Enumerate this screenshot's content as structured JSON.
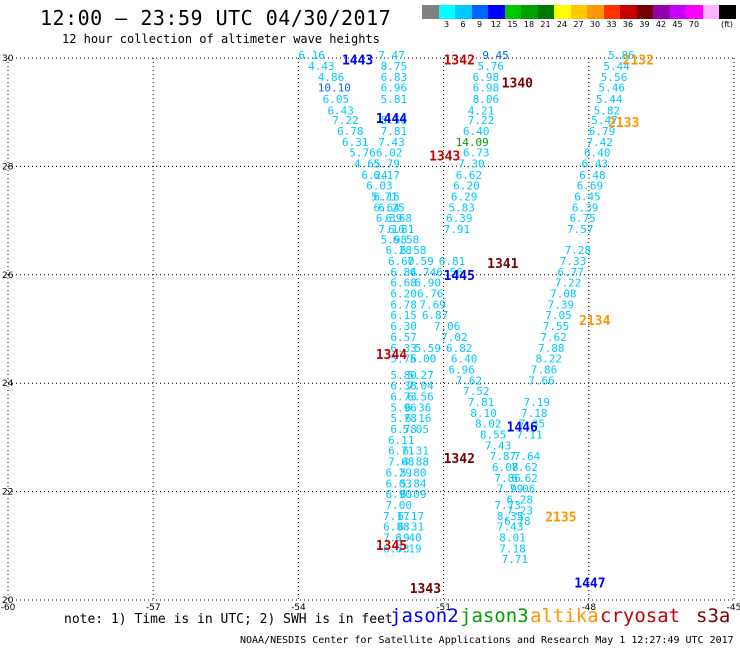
{
  "header": {
    "title": "12:00 — 23:59 UTC 04/30/2017",
    "subtitle": "12 hour collection of altimeter wave heights"
  },
  "colorbar": {
    "unit": "(ft)",
    "colors": [
      "#808080",
      "#00ffff",
      "#00c8ff",
      "#0064ff",
      "#0000ff",
      "#00c800",
      "#00a000",
      "#007800",
      "#ffff00",
      "#ffc800",
      "#ff9600",
      "#ff3200",
      "#c80000",
      "#780000",
      "#9600aa",
      "#c800ff",
      "#ff00ff",
      "#ffb4ff",
      "#000000"
    ],
    "labels": [
      "3",
      "6",
      "9",
      "12",
      "15",
      "18",
      "21",
      "24",
      "27",
      "30",
      "33",
      "36",
      "39",
      "42",
      "45",
      "70"
    ]
  },
  "axes": {
    "x_ticks": [
      "-60",
      "-57",
      "-54",
      "-51",
      "-48",
      "-45"
    ],
    "y_ticks": [
      "30",
      "28",
      "26",
      "24",
      "22",
      "20"
    ],
    "lon_range": [
      -60,
      -45
    ],
    "lat_range": [
      20,
      30
    ]
  },
  "colors": {
    "jason2": "#0000ff",
    "jason3": "#00a000",
    "altika": "#ff9600",
    "cryosat": "#c80000",
    "s3a": "#780000",
    "obs_light": "#00c8ff",
    "obs_dark": "#0064ff"
  },
  "passes": [
    {
      "label": "1443",
      "sat": "jason2",
      "lon": -53.1,
      "lat": 29.95
    },
    {
      "label": "1342",
      "sat": "cryosat",
      "lon": -51.0,
      "lat": 29.95
    },
    {
      "label": "2132",
      "sat": "altika",
      "lon": -47.3,
      "lat": 29.95
    },
    {
      "label": "1340",
      "sat": "s3a",
      "lon": -49.8,
      "lat": 29.53
    },
    {
      "label": "1444",
      "sat": "jason2",
      "lon": -52.4,
      "lat": 28.87
    },
    {
      "label": "2133",
      "sat": "altika",
      "lon": -47.6,
      "lat": 28.8
    },
    {
      "label": "1343",
      "sat": "cryosat",
      "lon": -51.3,
      "lat": 28.18
    },
    {
      "label": "1341",
      "sat": "s3a",
      "lon": -50.1,
      "lat": 26.2
    },
    {
      "label": "1445",
      "sat": "jason2",
      "lon": -51.0,
      "lat": 25.98
    },
    {
      "label": "2134",
      "sat": "altika",
      "lon": -48.2,
      "lat": 25.15
    },
    {
      "label": "1344",
      "sat": "cryosat",
      "lon": -52.4,
      "lat": 24.52
    },
    {
      "label": "1446",
      "sat": "jason2",
      "lon": -49.7,
      "lat": 23.18
    },
    {
      "label": "1342",
      "sat": "s3a",
      "lon": -51.0,
      "lat": 22.6
    },
    {
      "label": "2135",
      "sat": "altika",
      "lon": -48.9,
      "lat": 21.52
    },
    {
      "label": "1345",
      "sat": "cryosat",
      "lon": -52.4,
      "lat": 21.0
    },
    {
      "label": "1447",
      "sat": "jason2",
      "lon": -48.3,
      "lat": 20.3
    },
    {
      "label": "1343",
      "sat": "s3a",
      "lon": -51.7,
      "lat": 20.2
    }
  ],
  "observations": [
    {
      "v": "6.16",
      "lon": -54.0,
      "lat": 29.98
    },
    {
      "v": "4.43",
      "lon": -53.8,
      "lat": 29.78
    },
    {
      "v": "4.86",
      "lon": -53.6,
      "lat": 29.58
    },
    {
      "v": "10.10",
      "lon": -53.6,
      "lat": 29.38,
      "c": "dark"
    },
    {
      "v": "6.05",
      "lon": -53.5,
      "lat": 29.17
    },
    {
      "v": "6.43",
      "lon": -53.4,
      "lat": 28.96
    },
    {
      "v": "7.22",
      "lon": -53.3,
      "lat": 28.78
    },
    {
      "v": "6.78",
      "lon": -53.2,
      "lat": 28.58
    },
    {
      "v": "6.31",
      "lon": -53.1,
      "lat": 28.38
    },
    {
      "v": "5.76",
      "lon": -52.95,
      "lat": 28.18
    },
    {
      "v": "4.65",
      "lon": -52.85,
      "lat": 27.98
    },
    {
      "v": "6.24",
      "lon": -52.7,
      "lat": 27.77
    },
    {
      "v": "6.03",
      "lon": -52.6,
      "lat": 27.57
    },
    {
      "v": "5.71",
      "lon": -52.5,
      "lat": 27.37
    },
    {
      "v": "6.64",
      "lon": -52.45,
      "lat": 27.17
    },
    {
      "v": "6.39",
      "lon": -52.4,
      "lat": 26.97
    },
    {
      "v": "7.16",
      "lon": -52.35,
      "lat": 26.77
    },
    {
      "v": "5.98",
      "lon": -52.3,
      "lat": 26.58
    },
    {
      "v": "6.28",
      "lon": -52.2,
      "lat": 26.38
    },
    {
      "v": "6.60",
      "lon": -52.15,
      "lat": 26.18
    },
    {
      "v": "6.84",
      "lon": -52.1,
      "lat": 25.98
    },
    {
      "v": "6.68",
      "lon": -52.1,
      "lat": 25.78
    },
    {
      "v": "6.20",
      "lon": -52.1,
      "lat": 25.58
    },
    {
      "v": "6.78",
      "lon": -52.1,
      "lat": 25.38
    },
    {
      "v": "6.15",
      "lon": -52.1,
      "lat": 25.18
    },
    {
      "v": "6.30",
      "lon": -52.1,
      "lat": 24.98
    },
    {
      "v": "6.57",
      "lon": -52.1,
      "lat": 24.78
    },
    {
      "v": "6.33",
      "lon": -52.1,
      "lat": 24.58
    },
    {
      "v": "5.76",
      "lon": -52.1,
      "lat": 24.38
    },
    {
      "v": "5.80",
      "lon": -52.1,
      "lat": 24.08
    },
    {
      "v": "6.38",
      "lon": -52.1,
      "lat": 23.88
    },
    {
      "v": "6.73",
      "lon": -52.1,
      "lat": 23.68
    },
    {
      "v": "5.96",
      "lon": -52.1,
      "lat": 23.48
    },
    {
      "v": "5.78",
      "lon": -52.1,
      "lat": 23.28
    },
    {
      "v": "6.78",
      "lon": -52.1,
      "lat": 23.08
    },
    {
      "v": "6.11",
      "lon": -52.15,
      "lat": 22.88
    },
    {
      "v": "6.71",
      "lon": -52.15,
      "lat": 22.68
    },
    {
      "v": "7.68",
      "lon": -52.15,
      "lat": 22.48
    },
    {
      "v": "6.29",
      "lon": -52.2,
      "lat": 22.28
    },
    {
      "v": "6.03",
      "lon": -52.2,
      "lat": 22.08
    },
    {
      "v": "6.90",
      "lon": -52.2,
      "lat": 21.88
    },
    {
      "v": "7.00",
      "lon": -52.2,
      "lat": 21.68
    },
    {
      "v": "7.17",
      "lon": -52.25,
      "lat": 21.48
    },
    {
      "v": "6.88",
      "lon": -52.25,
      "lat": 21.28
    },
    {
      "v": "7.19",
      "lon": -52.25,
      "lat": 21.08
    },
    {
      "v": "6.73",
      "lon": -52.25,
      "lat": 20.88
    },
    {
      "v": "7.47",
      "lon": -52.35,
      "lat": 29.98
    },
    {
      "v": "8.75",
      "lon": -52.3,
      "lat": 29.78
    },
    {
      "v": "6.83",
      "lon": -52.3,
      "lat": 29.58
    },
    {
      "v": "6.96",
      "lon": -52.3,
      "lat": 29.38
    },
    {
      "v": "5.81",
      "lon": -52.3,
      "lat": 29.17
    },
    {
      "v": "5.56",
      "lon": -52.3,
      "lat": 28.78
    },
    {
      "v": "7.81",
      "lon": -52.3,
      "lat": 28.58
    },
    {
      "v": "7.43",
      "lon": -52.35,
      "lat": 28.38
    },
    {
      "v": "6.02",
      "lon": -52.4,
      "lat": 28.18
    },
    {
      "v": "5.79",
      "lon": -52.45,
      "lat": 27.98
    },
    {
      "v": "6.17",
      "lon": -52.45,
      "lat": 27.77
    },
    {
      "v": "6.15",
      "lon": -52.45,
      "lat": 27.37
    },
    {
      "v": "6.25",
      "lon": -52.35,
      "lat": 27.17
    },
    {
      "v": "6.68",
      "lon": -52.2,
      "lat": 26.97
    },
    {
      "v": "6.81",
      "lon": -52.15,
      "lat": 26.77
    },
    {
      "v": "6.58",
      "lon": -52.05,
      "lat": 26.58
    },
    {
      "v": "6.58",
      "lon": -51.9,
      "lat": 26.38
    },
    {
      "v": "7.59",
      "lon": -51.75,
      "lat": 26.18
    },
    {
      "v": "6.74",
      "lon": -51.7,
      "lat": 25.98
    },
    {
      "v": "6.90",
      "lon": -51.6,
      "lat": 25.78
    },
    {
      "v": "6.76",
      "lon": -51.55,
      "lat": 25.58
    },
    {
      "v": "7.69",
      "lon": -51.5,
      "lat": 25.38
    },
    {
      "v": "6.87",
      "lon": -51.45,
      "lat": 25.18
    },
    {
      "v": "7.06",
      "lon": -51.2,
      "lat": 24.98
    },
    {
      "v": "7.02",
      "lon": -51.05,
      "lat": 24.78
    },
    {
      "v": "5.59",
      "lon": -51.6,
      "lat": 24.58
    },
    {
      "v": "6.82",
      "lon": -50.95,
      "lat": 24.58
    },
    {
      "v": "5.00",
      "lon": -51.7,
      "lat": 24.38
    },
    {
      "v": "6.40",
      "lon": -50.85,
      "lat": 24.38
    },
    {
      "v": "5.27",
      "lon": -51.75,
      "lat": 24.08
    },
    {
      "v": "7.04",
      "lon": -51.75,
      "lat": 23.88
    },
    {
      "v": "6.56",
      "lon": -51.75,
      "lat": 23.68
    },
    {
      "v": "6.36",
      "lon": -51.8,
      "lat": 23.48
    },
    {
      "v": "6.16",
      "lon": -51.8,
      "lat": 23.28
    },
    {
      "v": "5.05",
      "lon": -51.85,
      "lat": 23.08
    },
    {
      "v": "6.31",
      "lon": -51.85,
      "lat": 22.68
    },
    {
      "v": "4.88",
      "lon": -51.85,
      "lat": 22.48
    },
    {
      "v": "5.80",
      "lon": -51.9,
      "lat": 22.28
    },
    {
      "v": "5.84",
      "lon": -51.9,
      "lat": 22.08
    },
    {
      "v": "6.09",
      "lon": -51.9,
      "lat": 21.88
    },
    {
      "v": "6.17",
      "lon": -51.95,
      "lat": 21.48
    },
    {
      "v": "6.31",
      "lon": -51.95,
      "lat": 21.28
    },
    {
      "v": "6.40",
      "lon": -52.0,
      "lat": 21.08
    },
    {
      "v": "6.19",
      "lon": -52.0,
      "lat": 20.88
    },
    {
      "v": "9.45",
      "lon": -50.2,
      "lat": 29.98,
      "c": "dark"
    },
    {
      "v": "5.76",
      "lon": -50.3,
      "lat": 29.78
    },
    {
      "v": "6.98",
      "lon": -50.4,
      "lat": 29.58
    },
    {
      "v": "6.98",
      "lon": -50.4,
      "lat": 29.38
    },
    {
      "v": "8.06",
      "lon": -50.4,
      "lat": 29.17
    },
    {
      "v": "4.21",
      "lon": -50.5,
      "lat": 28.96
    },
    {
      "v": "7.22",
      "lon": -50.5,
      "lat": 28.78
    },
    {
      "v": "6.40",
      "lon": -50.6,
      "lat": 28.58
    },
    {
      "v": "14.09",
      "lon": -50.75,
      "lat": 28.38,
      "c": "green"
    },
    {
      "v": "6.73",
      "lon": -50.6,
      "lat": 28.18
    },
    {
      "v": "7.30",
      "lon": -50.7,
      "lat": 27.98
    },
    {
      "v": "6.62",
      "lon": -50.75,
      "lat": 27.77
    },
    {
      "v": "6.20",
      "lon": -50.8,
      "lat": 27.57
    },
    {
      "v": "6.29",
      "lon": -50.85,
      "lat": 27.37
    },
    {
      "v": "5.83",
      "lon": -50.9,
      "lat": 27.17
    },
    {
      "v": "6.39",
      "lon": -50.95,
      "lat": 26.97
    },
    {
      "v": "7.91",
      "lon": -51.0,
      "lat": 26.77
    },
    {
      "v": "6.81",
      "lon": -51.1,
      "lat": 26.18
    },
    {
      "v": "6.56",
      "lon": -51.15,
      "lat": 25.98
    },
    {
      "v": "6.96",
      "lon": -50.9,
      "lat": 24.18
    },
    {
      "v": "7.62",
      "lon": -50.75,
      "lat": 23.98
    },
    {
      "v": "7.52",
      "lon": -50.6,
      "lat": 23.78
    },
    {
      "v": "7.81",
      "lon": -50.5,
      "lat": 23.58
    },
    {
      "v": "8.10",
      "lon": -50.45,
      "lat": 23.38
    },
    {
      "v": "8.02",
      "lon": -50.35,
      "lat": 23.18
    },
    {
      "v": "8.55",
      "lon": -50.25,
      "lat": 22.98
    },
    {
      "v": "7.43",
      "lon": -50.15,
      "lat": 22.78
    },
    {
      "v": "7.87",
      "lon": -50.05,
      "lat": 22.58
    },
    {
      "v": "6.08",
      "lon": -50.0,
      "lat": 22.38
    },
    {
      "v": "7.86",
      "lon": -49.95,
      "lat": 22.18
    },
    {
      "v": "7.99",
      "lon": -49.9,
      "lat": 21.98
    },
    {
      "v": "7.73",
      "lon": -49.95,
      "lat": 21.68
    },
    {
      "v": "8.35",
      "lon": -49.9,
      "lat": 21.48
    },
    {
      "v": "7.43",
      "lon": -49.9,
      "lat": 21.28
    },
    {
      "v": "8.01",
      "lon": -49.85,
      "lat": 21.08
    },
    {
      "v": "7.18",
      "lon": -49.85,
      "lat": 20.88
    },
    {
      "v": "7.71",
      "lon": -49.8,
      "lat": 20.68
    },
    {
      "v": "5.86",
      "lon": -47.6,
      "lat": 29.98
    },
    {
      "v": "5.44",
      "lon": -47.7,
      "lat": 29.78
    },
    {
      "v": "5.56",
      "lon": -47.75,
      "lat": 29.58
    },
    {
      "v": "5.46",
      "lon": -47.8,
      "lat": 29.38
    },
    {
      "v": "5.44",
      "lon": -47.85,
      "lat": 29.17
    },
    {
      "v": "5.82",
      "lon": -47.9,
      "lat": 28.96
    },
    {
      "v": "5.47",
      "lon": -47.95,
      "lat": 28.78
    },
    {
      "v": "6.79",
      "lon": -48.0,
      "lat": 28.58
    },
    {
      "v": "7.42",
      "lon": -48.05,
      "lat": 28.38
    },
    {
      "v": "6.40",
      "lon": -48.1,
      "lat": 28.18
    },
    {
      "v": "6.43",
      "lon": -48.15,
      "lat": 27.98
    },
    {
      "v": "6.48",
      "lon": -48.2,
      "lat": 27.77
    },
    {
      "v": "6.69",
      "lon": -48.25,
      "lat": 27.57
    },
    {
      "v": "6.45",
      "lon": -48.3,
      "lat": 27.37
    },
    {
      "v": "6.39",
      "lon": -48.35,
      "lat": 27.17
    },
    {
      "v": "6.75",
      "lon": -48.4,
      "lat": 26.97
    },
    {
      "v": "7.57",
      "lon": -48.45,
      "lat": 26.77
    },
    {
      "v": "7.28",
      "lon": -48.5,
      "lat": 26.38
    },
    {
      "v": "7.33",
      "lon": -48.6,
      "lat": 26.18
    },
    {
      "v": "6.77",
      "lon": -48.65,
      "lat": 25.98
    },
    {
      "v": "7.22",
      "lon": -48.7,
      "lat": 25.78
    },
    {
      "v": "7.08",
      "lon": -48.8,
      "lat": 25.58
    },
    {
      "v": "7.39",
      "lon": -48.85,
      "lat": 25.38
    },
    {
      "v": "7.05",
      "lon": -48.9,
      "lat": 25.18
    },
    {
      "v": "7.55",
      "lon": -48.95,
      "lat": 24.98
    },
    {
      "v": "7.62",
      "lon": -49.0,
      "lat": 24.78
    },
    {
      "v": "7.88",
      "lon": -49.05,
      "lat": 24.58
    },
    {
      "v": "8.22",
      "lon": -49.1,
      "lat": 24.38
    },
    {
      "v": "7.86",
      "lon": -49.2,
      "lat": 24.18
    },
    {
      "v": "7.66",
      "lon": -49.25,
      "lat": 23.98
    },
    {
      "v": "7.19",
      "lon": -49.35,
      "lat": 23.58
    },
    {
      "v": "7.18",
      "lon": -49.4,
      "lat": 23.38
    },
    {
      "v": "7.35",
      "lon": -49.45,
      "lat": 23.18
    },
    {
      "v": "7.11",
      "lon": -49.5,
      "lat": 22.98
    },
    {
      "v": "7.64",
      "lon": -49.55,
      "lat": 22.58
    },
    {
      "v": "7.62",
      "lon": -49.6,
      "lat": 22.38
    },
    {
      "v": "6.62",
      "lon": -49.6,
      "lat": 22.18
    },
    {
      "v": "7.06",
      "lon": -49.65,
      "lat": 21.98
    },
    {
      "v": "6.28",
      "lon": -49.7,
      "lat": 21.78
    },
    {
      "v": "7.23",
      "lon": -49.7,
      "lat": 21.58
    },
    {
      "v": "6.78",
      "lon": -49.75,
      "lat": 21.38
    }
  ],
  "footer": {
    "note": "note: 1) Time is in UTC; 2) SWH is in feet",
    "sat_jason2": "jason2",
    "sat_jason3": "jason3",
    "sat_altika": "altika",
    "sat_cryosat": "cryosat",
    "sat_s3a": "s3a",
    "credit": "NOAA/NESDIS Center for Satellite Applications and Research   May  1 12:27:49 UTC 2017"
  }
}
